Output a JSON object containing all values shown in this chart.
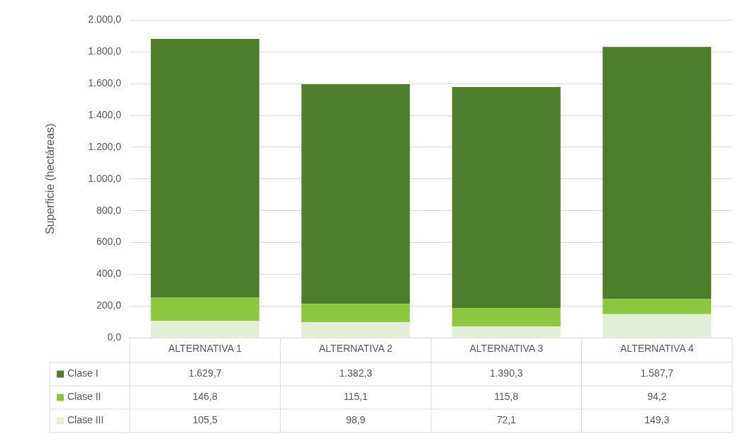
{
  "chart_data": {
    "type": "bar",
    "stacked": true,
    "ylabel": "Superficie (hectáreas)",
    "categories": [
      "ALTERNATIVA 1",
      "ALTERNATIVA 2",
      "ALTERNATIVA 3",
      "ALTERNATIVA 4"
    ],
    "series": [
      {
        "name": "Clase III",
        "color": "#e2eed6",
        "values": [
          105.5,
          98.9,
          72.1,
          149.3
        ],
        "value_labels": [
          "105,5",
          "98,9",
          "72,1",
          "149,3"
        ]
      },
      {
        "name": "Clase II",
        "color": "#8dc63f",
        "values": [
          146.8,
          115.1,
          115.8,
          94.2
        ],
        "value_labels": [
          "146,8",
          "115,1",
          "115,8",
          "94,2"
        ]
      },
      {
        "name": "Clase I",
        "color": "#4e7d2c",
        "values": [
          1629.7,
          1382.3,
          1390.3,
          1587.7
        ],
        "value_labels": [
          "1.629,7",
          "1.382,3",
          "1.390,3",
          "1.587,7"
        ]
      }
    ],
    "ylim": [
      0,
      2000
    ],
    "yticks": [
      {
        "value": 0,
        "label": "0,0"
      },
      {
        "value": 200,
        "label": "200,0"
      },
      {
        "value": 400,
        "label": "400,0"
      },
      {
        "value": 600,
        "label": "600,0"
      },
      {
        "value": 800,
        "label": "800,0"
      },
      {
        "value": 1000,
        "label": "1.000,0"
      },
      {
        "value": 1200,
        "label": "1.200,0"
      },
      {
        "value": 1400,
        "label": "1.400,0"
      },
      {
        "value": 1600,
        "label": "1.600,0"
      },
      {
        "value": 1800,
        "label": "1.800,0"
      },
      {
        "value": 2000,
        "label": "2.000,0"
      }
    ],
    "grid": "y",
    "legend": "bottom"
  }
}
